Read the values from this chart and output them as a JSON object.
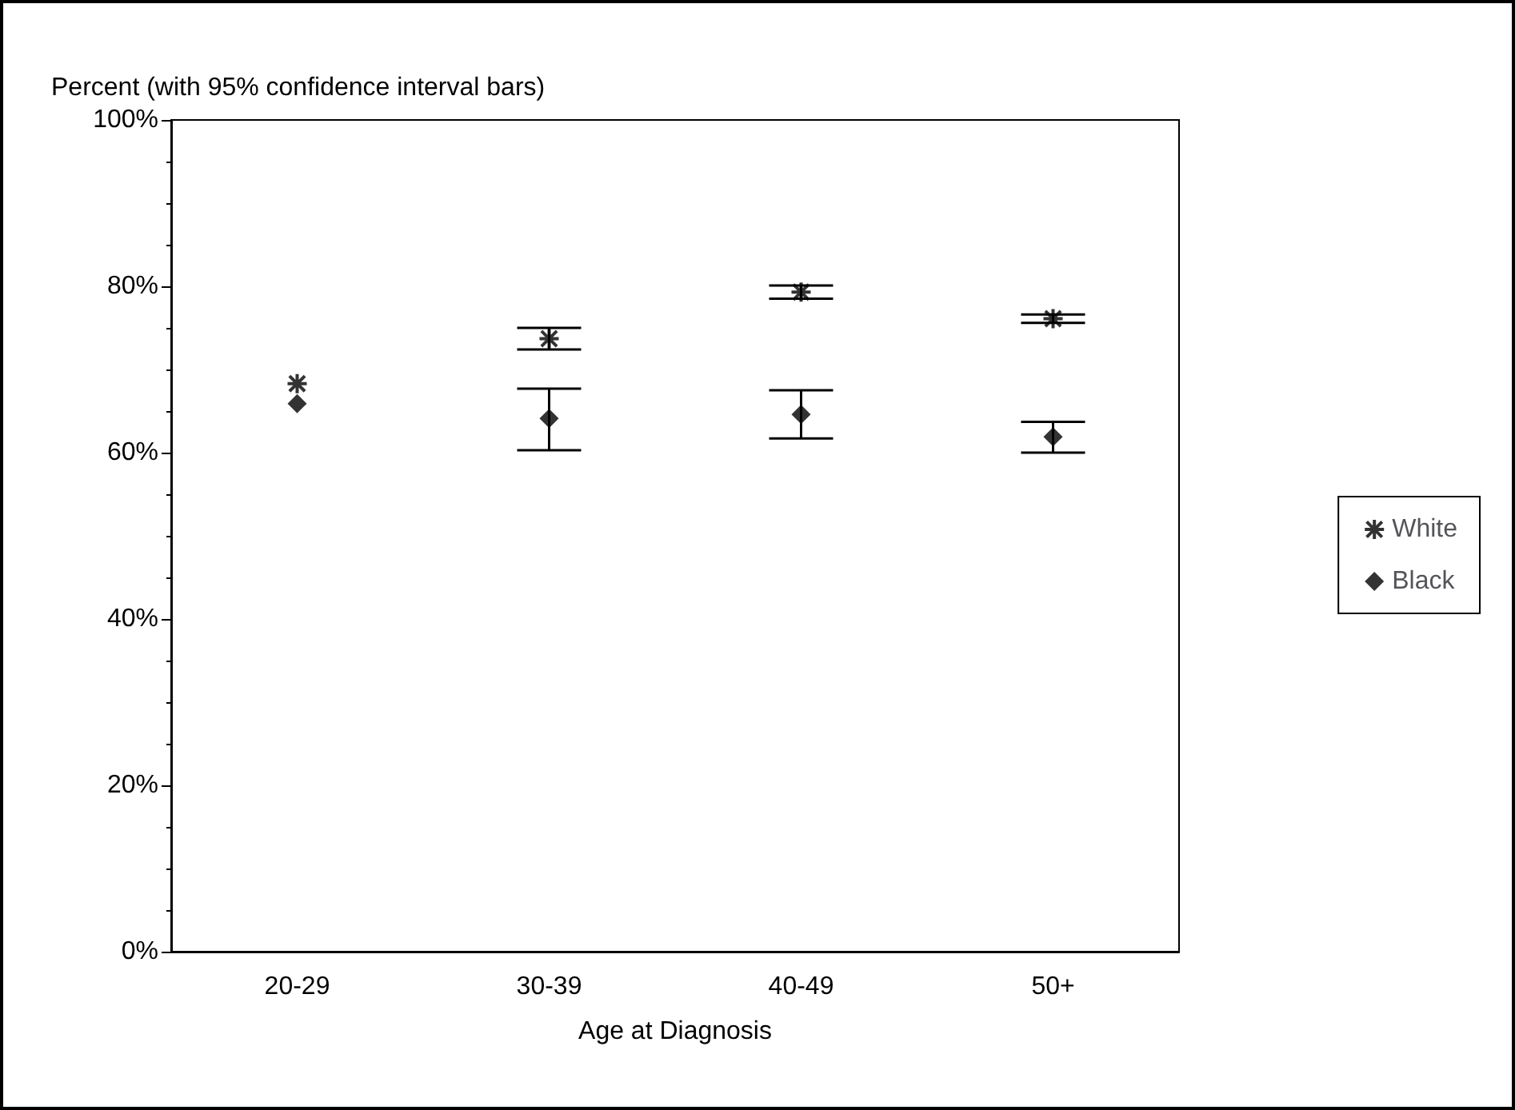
{
  "chart_data": {
    "type": "scatter",
    "ylabel": "Percent (with 95% confidence interval bars)",
    "xlabel": "Age at Diagnosis",
    "categories": [
      "20-29",
      "30-39",
      "40-49",
      "50+"
    ],
    "series": [
      {
        "name": "White",
        "color": "#000000",
        "marker": "cross",
        "values": [
          68.3,
          73.7,
          79.3,
          76.1
        ],
        "errors": [
          null,
          [
            72.4,
            75.0
          ],
          [
            78.5,
            80.1
          ],
          [
            75.6,
            76.6
          ]
        ]
      },
      {
        "name": "Black",
        "color": "#000000",
        "marker": "diamond",
        "values": [
          65.9,
          64.1,
          64.6,
          61.9
        ],
        "errors": [
          null,
          [
            60.3,
            67.7
          ],
          [
            61.7,
            67.5
          ],
          [
            60.0,
            63.7
          ]
        ]
      }
    ],
    "ylim": [
      0,
      100
    ],
    "yticks": [
      {
        "value": 0,
        "label": "0%"
      },
      {
        "value": 20,
        "label": "20%"
      },
      {
        "value": 40,
        "label": "40%"
      },
      {
        "value": 60,
        "label": "60%"
      },
      {
        "value": 80,
        "label": "80%"
      },
      {
        "value": 100,
        "label": "100%"
      }
    ],
    "grid": false,
    "legend": "right"
  }
}
